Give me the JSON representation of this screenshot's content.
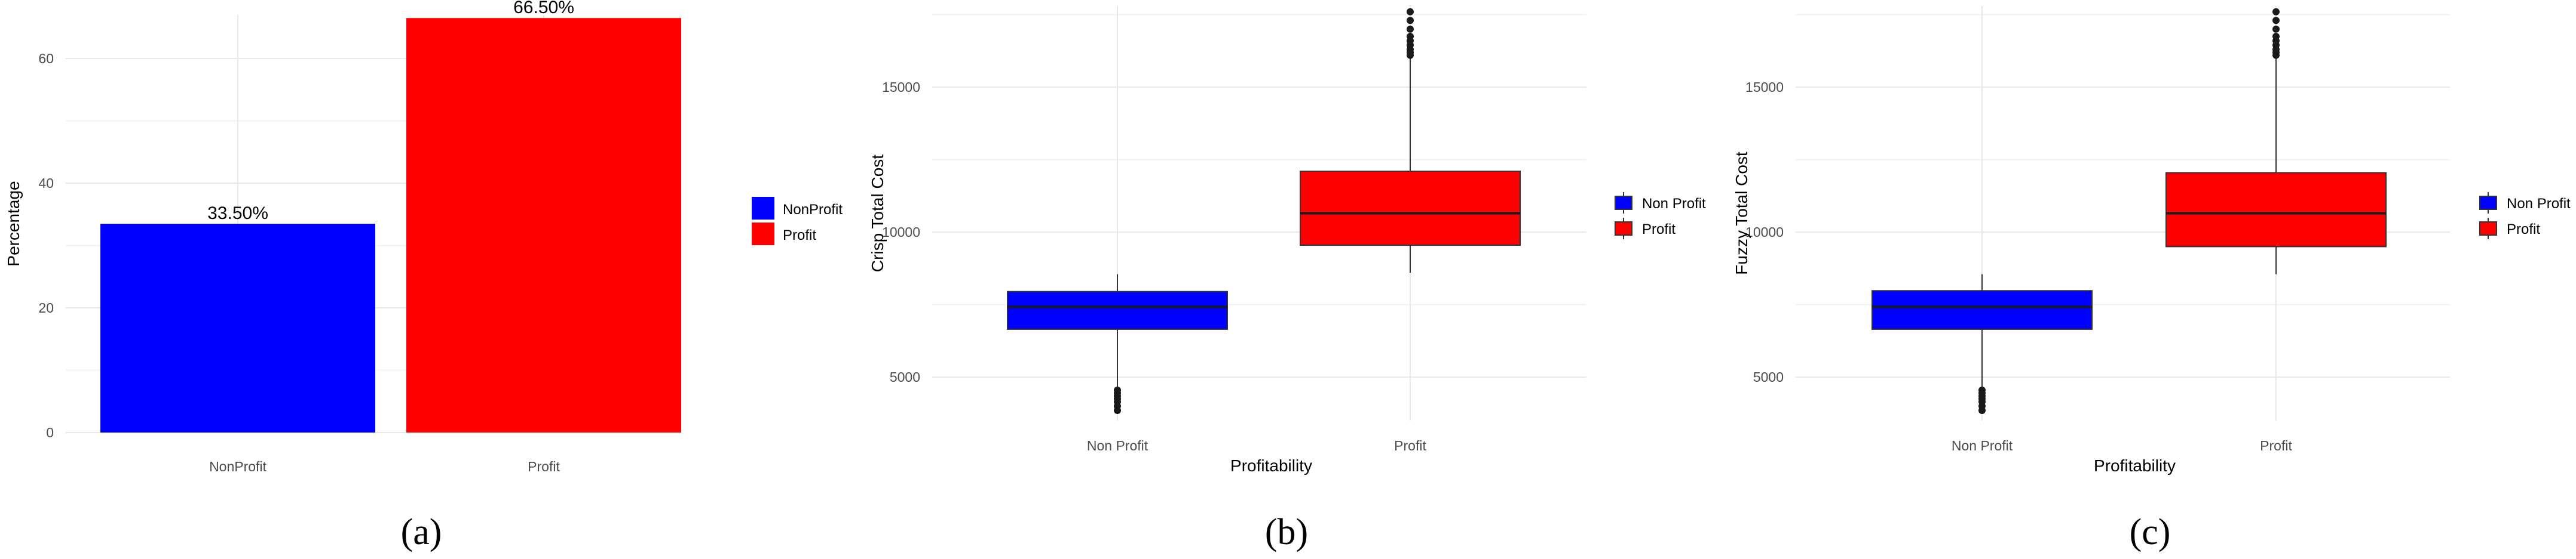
{
  "chart_data": [
    {
      "type": "bar",
      "panel_caption": "(a)",
      "categories": [
        "NonProfit",
        "Profit"
      ],
      "values": [
        33.5,
        66.5
      ],
      "data_labels": [
        "33.50%",
        "66.50%"
      ],
      "colors": [
        "#0000FF",
        "#FF0000"
      ],
      "ylabel": "Percentage",
      "ylim": [
        0,
        67
      ],
      "yticks": [
        0,
        20,
        40,
        60
      ],
      "grid": true,
      "legend": {
        "placement": "right",
        "entries": [
          {
            "label": "NonProfit",
            "color": "#0000FF"
          },
          {
            "label": "Profit",
            "color": "#FF0000"
          }
        ]
      }
    },
    {
      "type": "box",
      "panel_caption": "(b)",
      "categories": [
        "Non Profit",
        "Profit"
      ],
      "xlabel": "Profitability",
      "ylabel": "Crisp Total Cost",
      "ylim": [
        3500,
        17800
      ],
      "yticks": [
        5000,
        10000,
        15000
      ],
      "grid": true,
      "boxes": [
        {
          "category": "Non Profit",
          "color": "#0000FF",
          "q1": 6650,
          "median": 7420,
          "q3": 7950,
          "whisker_low": 4650,
          "whisker_high": 8550,
          "outliers": [
            3850,
            4000,
            4150,
            4250,
            4350,
            4450,
            4550
          ]
        },
        {
          "category": "Profit",
          "color": "#FF0000",
          "q1": 9550,
          "median": 10650,
          "q3": 12100,
          "whisker_low": 8600,
          "whisker_high": 16000,
          "outliers": [
            16100,
            16200,
            16300,
            16450,
            16600,
            16750,
            17000,
            17300,
            17600
          ]
        }
      ],
      "legend": {
        "placement": "right",
        "entries": [
          {
            "label": "Non Profit",
            "color": "#0000FF"
          },
          {
            "label": "Profit",
            "color": "#FF0000"
          }
        ]
      }
    },
    {
      "type": "box",
      "panel_caption": "(c)",
      "categories": [
        "Non Profit",
        "Profit"
      ],
      "xlabel": "Profitability",
      "ylabel": "Fuzzy Total Cost",
      "ylim": [
        3500,
        17800
      ],
      "yticks": [
        5000,
        10000,
        15000
      ],
      "grid": true,
      "boxes": [
        {
          "category": "Non Profit",
          "color": "#0000FF",
          "q1": 6650,
          "median": 7420,
          "q3": 7980,
          "whisker_low": 4650,
          "whisker_high": 8550,
          "outliers": [
            3850,
            4000,
            4150,
            4250,
            4350,
            4450,
            4550
          ]
        },
        {
          "category": "Profit",
          "color": "#FF0000",
          "q1": 9500,
          "median": 10650,
          "q3": 12050,
          "whisker_low": 8550,
          "whisker_high": 16000,
          "outliers": [
            16100,
            16200,
            16300,
            16450,
            16600,
            16750,
            17000,
            17300,
            17600
          ]
        }
      ],
      "legend": {
        "placement": "right",
        "entries": [
          {
            "label": "Non Profit",
            "color": "#0000FF"
          },
          {
            "label": "Profit",
            "color": "#FF0000"
          }
        ]
      }
    }
  ]
}
